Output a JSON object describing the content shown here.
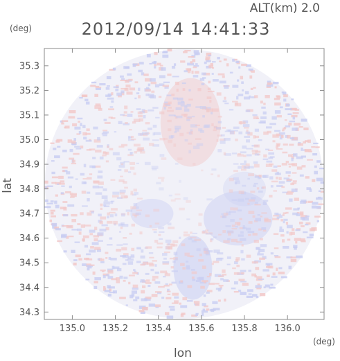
{
  "chart_data": {
    "type": "heatmap",
    "altitude_label": "ALT(km) 2.0",
    "title": "2012/09/14 14:41:33",
    "xlabel": "lon",
    "ylabel": "lat",
    "x_unit": "(deg)",
    "y_unit": "(deg)",
    "xlim": [
      134.87,
      136.17
    ],
    "ylim": [
      34.27,
      35.37
    ],
    "x_ticks": [
      135.0,
      135.2,
      135.4,
      135.6,
      135.8,
      136.0
    ],
    "x_tick_labels": [
      "135.0",
      "135.2",
      "135.4",
      "135.6",
      "135.8",
      "136.0"
    ],
    "y_ticks": [
      34.3,
      34.4,
      34.5,
      34.6,
      34.7,
      34.8,
      34.9,
      35.0,
      35.1,
      35.2,
      35.3
    ],
    "y_tick_labels": [
      "34.3",
      "34.4",
      "34.5",
      "34.6",
      "34.7",
      "34.8",
      "34.9",
      "35.0",
      "35.1",
      "35.2",
      "35.3"
    ],
    "grid": false,
    "radar_center": [
      135.52,
      34.82
    ],
    "radar_range_deg": [
      0.648,
      0.547
    ],
    "colors": {
      "positive": "#f2c8c8",
      "negative": "#c8cdf2",
      "neutral": "#f1f1f8",
      "frame": "#888888",
      "text": "#555555"
    },
    "regions": [
      {
        "name": "north-sector",
        "lon": 135.55,
        "lat": 35.07,
        "lon_radius": 0.14,
        "lat_radius": 0.18,
        "sign": "positive",
        "intensity": 0.45
      },
      {
        "name": "southeast-area",
        "lon": 135.77,
        "lat": 34.68,
        "lon_radius": 0.16,
        "lat_radius": 0.11,
        "sign": "negative",
        "intensity": 0.45
      },
      {
        "name": "south-sector",
        "lon": 135.56,
        "lat": 34.48,
        "lon_radius": 0.09,
        "lat_radius": 0.13,
        "sign": "negative",
        "intensity": 0.55
      },
      {
        "name": "southwest-area",
        "lon": 135.37,
        "lat": 34.7,
        "lon_radius": 0.1,
        "lat_radius": 0.06,
        "sign": "negative",
        "intensity": 0.4
      },
      {
        "name": "east-patch",
        "lon": 135.8,
        "lat": 34.8,
        "lon_radius": 0.1,
        "lat_radius": 0.07,
        "sign": "negative",
        "intensity": 0.3
      }
    ]
  }
}
